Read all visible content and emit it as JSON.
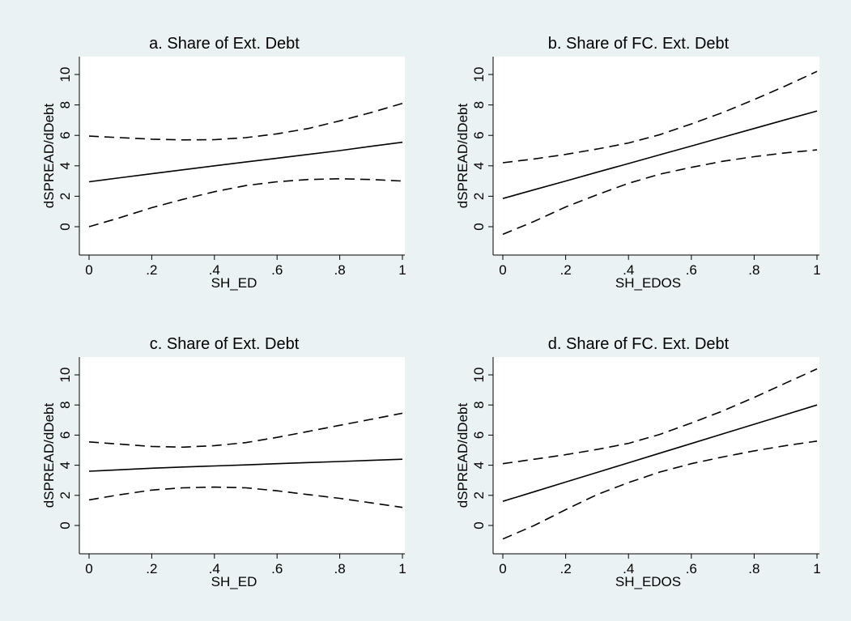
{
  "chart_data": [
    {
      "type": "line",
      "title": "a. Share of Ext. Debt",
      "xlabel": "SH_ED",
      "ylabel": "dSPREAD/dDebt",
      "xlim": [
        0,
        1
      ],
      "ylim": [
        0,
        10
      ],
      "x_ticks": [
        "0",
        ".2",
        ".4",
        ".6",
        ".8",
        "1"
      ],
      "y_ticks": [
        "0",
        "2",
        "4",
        "6",
        "8",
        "10"
      ],
      "x": [
        0,
        0.1,
        0.2,
        0.3,
        0.4,
        0.5,
        0.6,
        0.7,
        0.8,
        0.9,
        1.0
      ],
      "series": [
        {
          "style": "dashed",
          "values": [
            5.95,
            5.85,
            5.75,
            5.7,
            5.72,
            5.85,
            6.1,
            6.45,
            6.95,
            7.5,
            8.1
          ]
        },
        {
          "style": "solid",
          "values": [
            2.95,
            3.22,
            3.48,
            3.74,
            4.0,
            4.25,
            4.5,
            4.75,
            5.0,
            5.28,
            5.55
          ]
        },
        {
          "style": "dashed",
          "values": [
            0.0,
            0.6,
            1.25,
            1.8,
            2.3,
            2.7,
            2.95,
            3.1,
            3.15,
            3.1,
            3.0
          ]
        }
      ]
    },
    {
      "type": "line",
      "title": "b. Share of FC. Ext. Debt",
      "xlabel": "SH_EDOS",
      "ylabel": "dSPREAD/dDebt",
      "xlim": [
        0,
        1
      ],
      "ylim": [
        0,
        10
      ],
      "x_ticks": [
        "0",
        ".2",
        ".4",
        ".6",
        ".8",
        "1"
      ],
      "y_ticks": [
        "0",
        "2",
        "4",
        "6",
        "8",
        "10"
      ],
      "x": [
        0,
        0.1,
        0.2,
        0.3,
        0.4,
        0.5,
        0.6,
        0.7,
        0.8,
        0.9,
        1.0
      ],
      "series": [
        {
          "style": "dashed",
          "values": [
            4.2,
            4.45,
            4.75,
            5.1,
            5.5,
            6.05,
            6.75,
            7.5,
            8.35,
            9.25,
            10.2
          ]
        },
        {
          "style": "solid",
          "values": [
            1.85,
            2.43,
            3.0,
            3.58,
            4.15,
            4.73,
            5.3,
            5.88,
            6.45,
            7.03,
            7.6
          ]
        },
        {
          "style": "dashed",
          "values": [
            -0.5,
            0.35,
            1.3,
            2.1,
            2.85,
            3.45,
            3.9,
            4.3,
            4.6,
            4.85,
            5.05
          ]
        }
      ]
    },
    {
      "type": "line",
      "title": "c. Share of Ext. Debt",
      "xlabel": "SH_ED",
      "ylabel": "dSPREAD/dDebt",
      "xlim": [
        0,
        1
      ],
      "ylim": [
        0,
        10
      ],
      "x_ticks": [
        "0",
        ".2",
        ".4",
        ".6",
        ".8",
        "1"
      ],
      "y_ticks": [
        "0",
        "2",
        "4",
        "6",
        "8",
        "10"
      ],
      "x": [
        0,
        0.1,
        0.2,
        0.3,
        0.4,
        0.5,
        0.6,
        0.7,
        0.8,
        0.9,
        1.0
      ],
      "series": [
        {
          "style": "dashed",
          "values": [
            5.55,
            5.4,
            5.25,
            5.2,
            5.3,
            5.5,
            5.85,
            6.25,
            6.65,
            7.05,
            7.45
          ]
        },
        {
          "style": "solid",
          "values": [
            3.6,
            3.7,
            3.8,
            3.88,
            3.95,
            4.02,
            4.1,
            4.18,
            4.25,
            4.32,
            4.4
          ]
        },
        {
          "style": "dashed",
          "values": [
            1.7,
            2.05,
            2.35,
            2.5,
            2.55,
            2.5,
            2.3,
            2.05,
            1.8,
            1.5,
            1.2
          ]
        }
      ]
    },
    {
      "type": "line",
      "title": "d. Share of FC. Ext. Debt",
      "xlabel": "SH_EDOS",
      "ylabel": "dSPREAD/dDebt",
      "xlim": [
        0,
        1
      ],
      "ylim": [
        0,
        10
      ],
      "x_ticks": [
        "0",
        ".2",
        ".4",
        ".6",
        ".8",
        "1"
      ],
      "y_ticks": [
        "0",
        "2",
        "4",
        "6",
        "8",
        "10"
      ],
      "x": [
        0,
        0.1,
        0.2,
        0.3,
        0.4,
        0.5,
        0.6,
        0.7,
        0.8,
        0.9,
        1.0
      ],
      "series": [
        {
          "style": "dashed",
          "values": [
            4.1,
            4.4,
            4.7,
            5.05,
            5.45,
            6.05,
            6.8,
            7.6,
            8.5,
            9.45,
            10.4
          ]
        },
        {
          "style": "solid",
          "values": [
            1.6,
            2.24,
            2.88,
            3.52,
            4.16,
            4.8,
            5.44,
            6.08,
            6.72,
            7.36,
            8.0
          ]
        },
        {
          "style": "dashed",
          "values": [
            -0.9,
            0.0,
            1.05,
            2.05,
            2.85,
            3.55,
            4.1,
            4.55,
            4.95,
            5.3,
            5.6
          ]
        }
      ]
    }
  ]
}
